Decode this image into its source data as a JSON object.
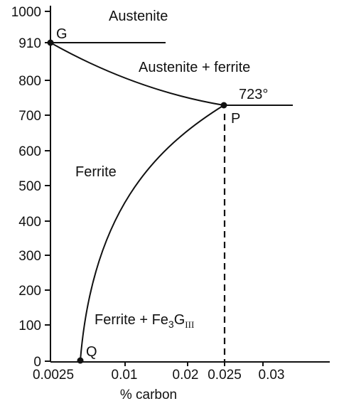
{
  "y_ticks": [
    "0",
    "100",
    "200",
    "300",
    "400",
    "500",
    "600",
    "700",
    "800",
    "910",
    "1000"
  ],
  "x_ticks": [
    "0.0025",
    "0.01",
    "0.02",
    "0.025",
    "0.03"
  ],
  "x_axis_label": "% carbon",
  "regions": {
    "austenite": "Austenite",
    "austenite_ferrite": "Austenite + ferrite",
    "ferrite": "Ferrite",
    "ferrite_fe3g_prefix": "Ferrite + Fe",
    "ferrite_fe3g_sub": "3",
    "ferrite_fe3g_mid": "G",
    "ferrite_fe3g_sup": "III"
  },
  "points": {
    "G": "G",
    "P": "P",
    "Q": "Q",
    "eutectoid_temp": "723°"
  }
}
